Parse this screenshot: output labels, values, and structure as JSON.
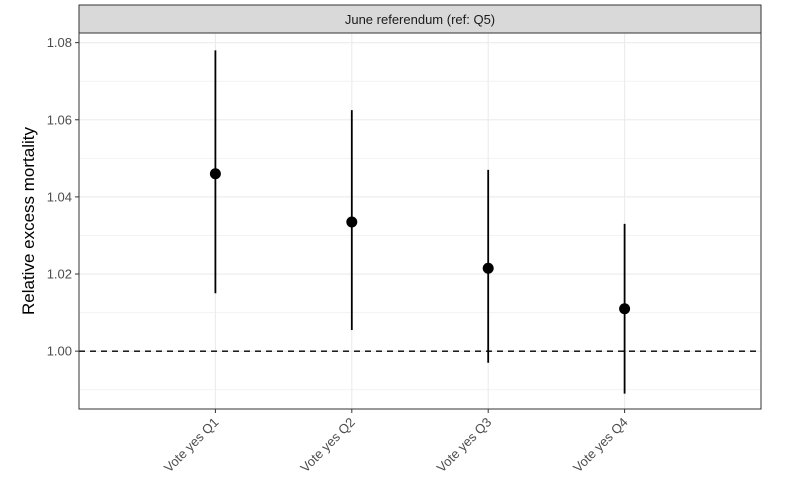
{
  "chart_data": {
    "type": "scatter",
    "facet_title": "June referendum (ref: Q5)",
    "ylabel": "Relative excess mortality",
    "xlabel": "",
    "categories": [
      "Vote yes Q1",
      "Vote yes Q2",
      "Vote yes Q3",
      "Vote yes Q4"
    ],
    "estimate": [
      1.046,
      1.0335,
      1.0215,
      1.011
    ],
    "ci_lower": [
      1.015,
      1.0055,
      0.997,
      0.989
    ],
    "ci_upper": [
      1.078,
      1.0625,
      1.047,
      1.033
    ],
    "reference_line": 1.0,
    "ylim": [
      0.985,
      1.0825
    ],
    "yticks": [
      1.0,
      1.02,
      1.04,
      1.06,
      1.08
    ],
    "ytick_labels": [
      "1.00",
      "1.02",
      "1.04",
      "1.06",
      "1.08"
    ],
    "grid": true,
    "theme": "bw"
  }
}
